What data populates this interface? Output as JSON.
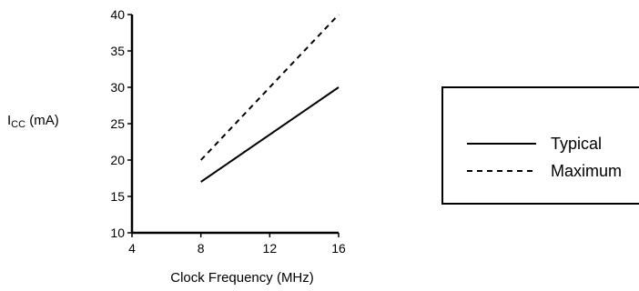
{
  "chart_data": {
    "type": "line",
    "title": "",
    "xlabel": "Clock Frequency (MHz)",
    "ylabel": {
      "main": "I",
      "subscript": "CC",
      "unit": " (mA)"
    },
    "xlim": [
      4,
      16
    ],
    "ylim": [
      10,
      40
    ],
    "x_ticks": [
      4,
      8,
      12,
      16
    ],
    "y_ticks": [
      10,
      15,
      20,
      25,
      30,
      35,
      40
    ],
    "grid": false,
    "legend_position": "right",
    "series": [
      {
        "name": "Typical",
        "style": "solid",
        "x": [
          8,
          16
        ],
        "y": [
          17,
          30
        ]
      },
      {
        "name": "Maximum",
        "style": "dashed",
        "x": [
          8,
          16
        ],
        "y": [
          20,
          40
        ]
      }
    ],
    "colors": {
      "line": "#000000",
      "axis": "#000000",
      "background": "#ffffff"
    }
  }
}
